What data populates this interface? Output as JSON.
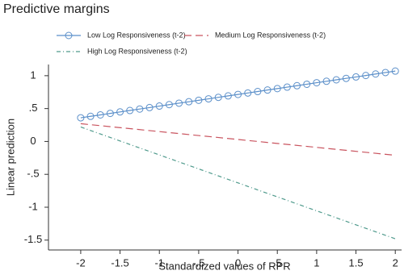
{
  "chart_data": {
    "type": "line",
    "title": "Predictive margins",
    "xlabel": "Standardized values of RPR",
    "ylabel": "Linear prediction",
    "series": [
      {
        "name": "Low Log Responsiveness (t-2)",
        "color": "#5b8fc9",
        "marker": "circle",
        "dash": "solid",
        "x": [
          -2,
          -1.875,
          -1.75,
          -1.625,
          -1.5,
          -1.375,
          -1.25,
          -1.125,
          -1,
          -0.875,
          -0.75,
          -0.625,
          -0.5,
          -0.375,
          -0.25,
          -0.125,
          0,
          0.125,
          0.25,
          0.375,
          0.5,
          0.625,
          0.75,
          0.875,
          1,
          1.125,
          1.25,
          1.375,
          1.5,
          1.625,
          1.75,
          1.875,
          2
        ],
        "values": [
          0.36,
          0.382,
          0.404,
          0.427,
          0.449,
          0.471,
          0.493,
          0.515,
          0.538,
          0.56,
          0.582,
          0.604,
          0.626,
          0.648,
          0.671,
          0.693,
          0.715,
          0.737,
          0.759,
          0.782,
          0.804,
          0.826,
          0.848,
          0.87,
          0.893,
          0.915,
          0.937,
          0.959,
          0.981,
          1.003,
          1.026,
          1.048,
          1.07
        ]
      },
      {
        "name": "Medium Log Responsiveness (t-2)",
        "color": "#c9545f",
        "dash": "dash",
        "x": [
          -2,
          2
        ],
        "values": [
          0.27,
          -0.21
        ]
      },
      {
        "name": "High Log Responsiveness (t-2)",
        "color": "#4f9a8c",
        "dash": "dashdot",
        "x": [
          -2,
          2
        ],
        "values": [
          0.22,
          -1.48
        ]
      }
    ],
    "xlim": [
      -2.41,
      2.08
    ],
    "ylim": [
      -1.65,
      1.17
    ],
    "xticks": [
      -2,
      -1.5,
      -1,
      {
        "value": -0.5,
        "label": "-.5"
      },
      0,
      {
        "value": 0.5,
        "label": ".5"
      },
      1,
      1.5,
      2
    ],
    "yticks": [
      1,
      {
        "value": 0.5,
        "label": ".5"
      },
      0,
      {
        "value": -0.5,
        "label": "-.5"
      },
      -1,
      -1.5
    ]
  }
}
